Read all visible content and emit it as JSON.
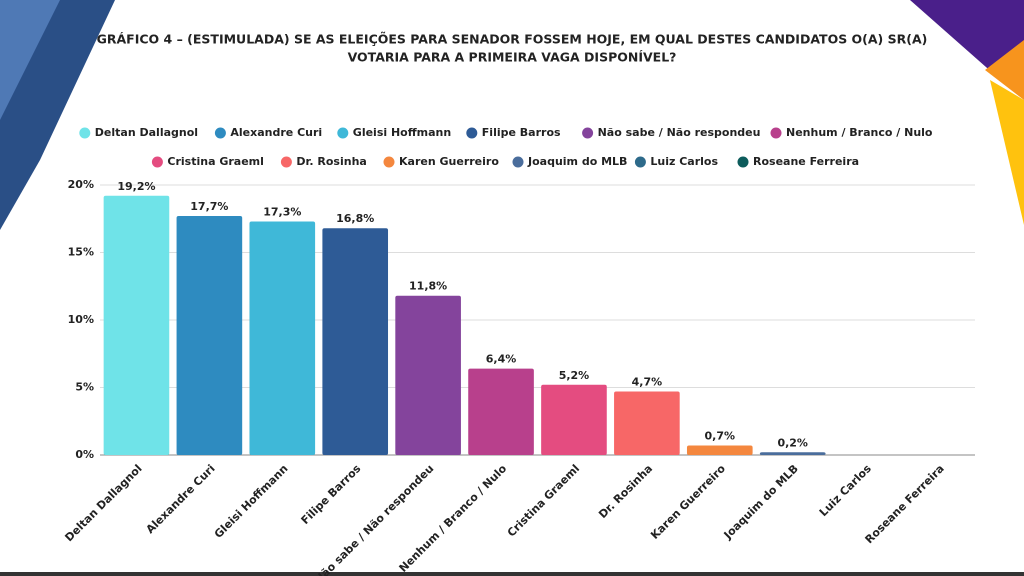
{
  "chart_data": {
    "type": "bar",
    "title": [
      "GRÁFICO 4 – (ESTIMULADA) SE AS ELEIÇÕES PARA SENADOR FOSSEM HOJE, EM QUAL DESTES CANDIDATOS O(A) SR(A)",
      "VOTARIA PARA A PRIMEIRA VAGA DISPONÍVEL?"
    ],
    "categories": [
      "Deltan Dallagnol",
      "Alexandre Curi",
      "Gleisi Hoffmann",
      "Filipe Barros",
      "Não sabe / Não respondeu",
      "Nenhum / Branco / Nulo",
      "Cristina Graeml",
      "Dr. Rosinha",
      "Karen Guerreiro",
      "Joaquim do MLB",
      "Luiz Carlos",
      "Roseane Ferreira"
    ],
    "values": [
      19.2,
      17.7,
      17.3,
      16.8,
      11.8,
      6.4,
      5.2,
      4.7,
      0.7,
      0.2,
      0,
      0
    ],
    "value_labels": [
      "19,2%",
      "17,7%",
      "17,3%",
      "16,8%",
      "11,8%",
      "6,4%",
      "5,2%",
      "4,7%",
      "0,7%",
      "0,2%",
      null,
      null
    ],
    "colors": [
      "#6fe3e8",
      "#2e8bc0",
      "#3fb8d8",
      "#2e5b96",
      "#84449c",
      "#b8408c",
      "#e44c80",
      "#f76767",
      "#f4873e",
      "#4a6d9c",
      "#2d6a8a",
      "#0d5c5c"
    ],
    "ylim": [
      0,
      20
    ],
    "yticks": [
      {
        "value": 0,
        "label": "0%"
      },
      {
        "value": 5,
        "label": "5%"
      },
      {
        "value": 10,
        "label": "10%"
      },
      {
        "value": 15,
        "label": "15%"
      },
      {
        "value": 20,
        "label": "20%"
      }
    ],
    "grid": true
  }
}
